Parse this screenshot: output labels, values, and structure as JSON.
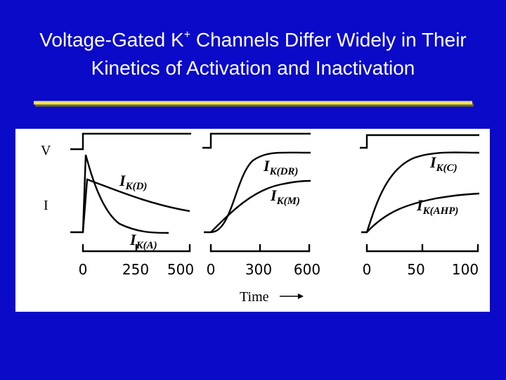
{
  "slide": {
    "title": {
      "line1_start": "Voltage-Gated K",
      "line1_sup": "+",
      "line1_end": " Channels Differ Widely in Their",
      "line2": "Kinetics of Activation and Inactivation"
    },
    "figure": {
      "v_label": "V",
      "i_label": "I",
      "time_label": "Time",
      "panels": [
        {
          "ticks": [
            "0",
            "250",
            "500"
          ],
          "currents": [
            {
              "symbol": "I",
              "subscript": "K(D)"
            },
            {
              "symbol": "I",
              "subscript": "K(A)"
            }
          ]
        },
        {
          "ticks": [
            "0",
            "300",
            "600"
          ],
          "currents": [
            {
              "symbol": "I",
              "subscript": "K(DR)"
            },
            {
              "symbol": "I",
              "subscript": "K(M)"
            }
          ]
        },
        {
          "ticks": [
            "0",
            "50",
            "100"
          ],
          "currents": [
            {
              "symbol": "I",
              "subscript": "K(C)"
            },
            {
              "symbol": "I",
              "subscript": "K(AHP)"
            }
          ]
        }
      ]
    }
  }
}
